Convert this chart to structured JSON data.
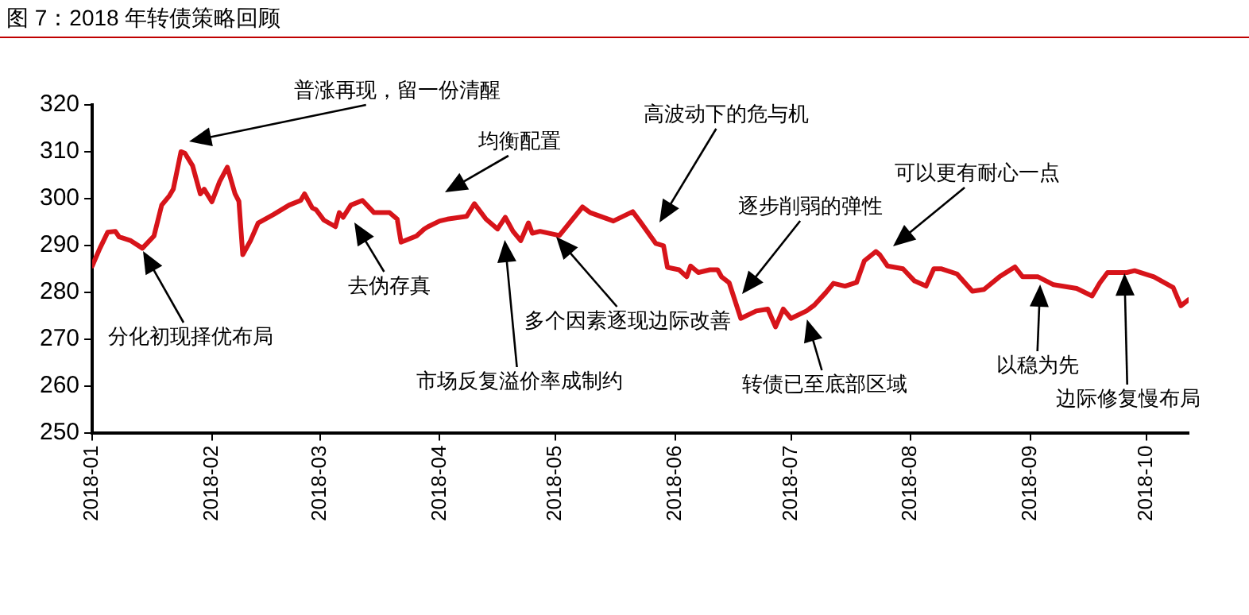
{
  "chart_data": {
    "type": "line",
    "title": "图 7：2018 年转债策略回顾",
    "x": [
      "2018-01-01",
      "2018-01-03",
      "2018-01-05",
      "2018-01-07",
      "2018-01-08",
      "2018-01-11",
      "2018-01-14",
      "2018-01-17",
      "2018-01-19",
      "2018-01-21",
      "2018-01-22",
      "2018-01-24",
      "2018-01-25",
      "2018-01-27",
      "2018-01-29",
      "2018-01-30",
      "2018-02-01",
      "2018-02-03",
      "2018-02-05",
      "2018-02-07",
      "2018-02-08",
      "2018-02-09",
      "2018-02-11",
      "2018-02-13",
      "2018-02-17",
      "2018-02-21",
      "2018-02-24",
      "2018-02-25",
      "2018-02-27",
      "2018-02-28",
      "2018-03-02",
      "2018-03-05",
      "2018-03-06",
      "2018-03-07",
      "2018-03-09",
      "2018-03-12",
      "2018-03-15",
      "2018-03-19",
      "2018-03-21",
      "2018-03-22",
      "2018-03-26",
      "2018-03-28",
      "2018-03-29",
      "2018-04-01",
      "2018-04-03",
      "2018-04-08",
      "2018-04-10",
      "2018-04-13",
      "2018-04-16",
      "2018-04-18",
      "2018-04-20",
      "2018-04-22",
      "2018-04-24",
      "2018-04-25",
      "2018-04-27",
      "2018-05-02",
      "2018-05-08",
      "2018-05-10",
      "2018-05-16",
      "2018-05-21",
      "2018-05-23",
      "2018-05-27",
      "2018-05-29",
      "2018-05-30",
      "2018-06-02",
      "2018-06-04",
      "2018-06-05",
      "2018-06-07",
      "2018-06-10",
      "2018-06-12",
      "2018-06-13",
      "2018-06-15",
      "2018-06-18",
      "2018-06-22",
      "2018-06-25",
      "2018-06-27",
      "2018-06-29",
      "2018-07-01",
      "2018-07-05",
      "2018-07-07",
      "2018-07-10",
      "2018-07-12",
      "2018-07-15",
      "2018-07-18",
      "2018-07-20",
      "2018-07-23",
      "2018-07-24",
      "2018-07-26",
      "2018-07-30",
      "2018-08-02",
      "2018-08-05",
      "2018-08-07",
      "2018-08-09",
      "2018-08-13",
      "2018-08-17",
      "2018-08-20",
      "2018-08-24",
      "2018-08-28",
      "2018-08-30",
      "2018-09-03",
      "2018-09-07",
      "2018-09-13",
      "2018-09-17",
      "2018-09-19",
      "2018-09-21",
      "2018-09-26",
      "2018-09-28",
      "2018-10-03",
      "2018-10-08",
      "2018-10-10",
      "2018-10-12"
    ],
    "series": [
      {
        "color": "#d7141a",
        "values": [
          285.6,
          289.4,
          292.8,
          293,
          291.8,
          291,
          289.4,
          292,
          298.6,
          300.6,
          302,
          310,
          309.7,
          307,
          301,
          302,
          299.3,
          303.6,
          306.7,
          301,
          299.4,
          288,
          291,
          294.8,
          296.6,
          298.6,
          299.6,
          301,
          298,
          297.6,
          295.4,
          294,
          297,
          296,
          298.6,
          299.6,
          297,
          297,
          295.6,
          290.7,
          292,
          293.5,
          294,
          295.2,
          295.6,
          296.2,
          298.9,
          295.6,
          293.5,
          296,
          293,
          291,
          294.8,
          292.6,
          293,
          292.1,
          298.2,
          297,
          295.2,
          297.2,
          295,
          290.4,
          289.9,
          285.3,
          284.8,
          283.3,
          285.6,
          284.2,
          284.8,
          284.8,
          283.3,
          282,
          274.4,
          276,
          276.4,
          272.6,
          276.4,
          274.4,
          276,
          277.2,
          279.9,
          281.9,
          281.3,
          282.1,
          286.7,
          288.7,
          288,
          285.6,
          285,
          282.4,
          281.3,
          285,
          285,
          283.9,
          280.2,
          280.6,
          283.3,
          285.4,
          283.3,
          283.3,
          281.6,
          280.8,
          279.2,
          282,
          284.2,
          284.2,
          284.6,
          283.3,
          281,
          277.1,
          278.4
        ]
      }
    ],
    "xlim": [
      "2018-01-01",
      "2018-10-12"
    ],
    "xticks": [
      "2018-01",
      "2018-02",
      "2018-03",
      "2018-04",
      "2018-05",
      "2018-06",
      "2018-07",
      "2018-08",
      "2018-09",
      "2018-10"
    ],
    "ylim": [
      250,
      320
    ],
    "yticks": [
      250,
      260,
      270,
      280,
      290,
      300,
      310,
      320
    ],
    "annotations": [
      "分化初现择优布局",
      "普涨再现，留一份清醒",
      "去伪存真",
      "均衡配置",
      "市场反复溢价率成制约",
      "多个因素逐现边际改善",
      "高波动下的危与机",
      "逐步削弱的弹性",
      "转债已至底部区域",
      "可以更有耐心一点",
      "以稳为先",
      "边际修复慢布局"
    ],
    "grid": false,
    "legend": false,
    "marker": "none",
    "line_style": "solid"
  }
}
